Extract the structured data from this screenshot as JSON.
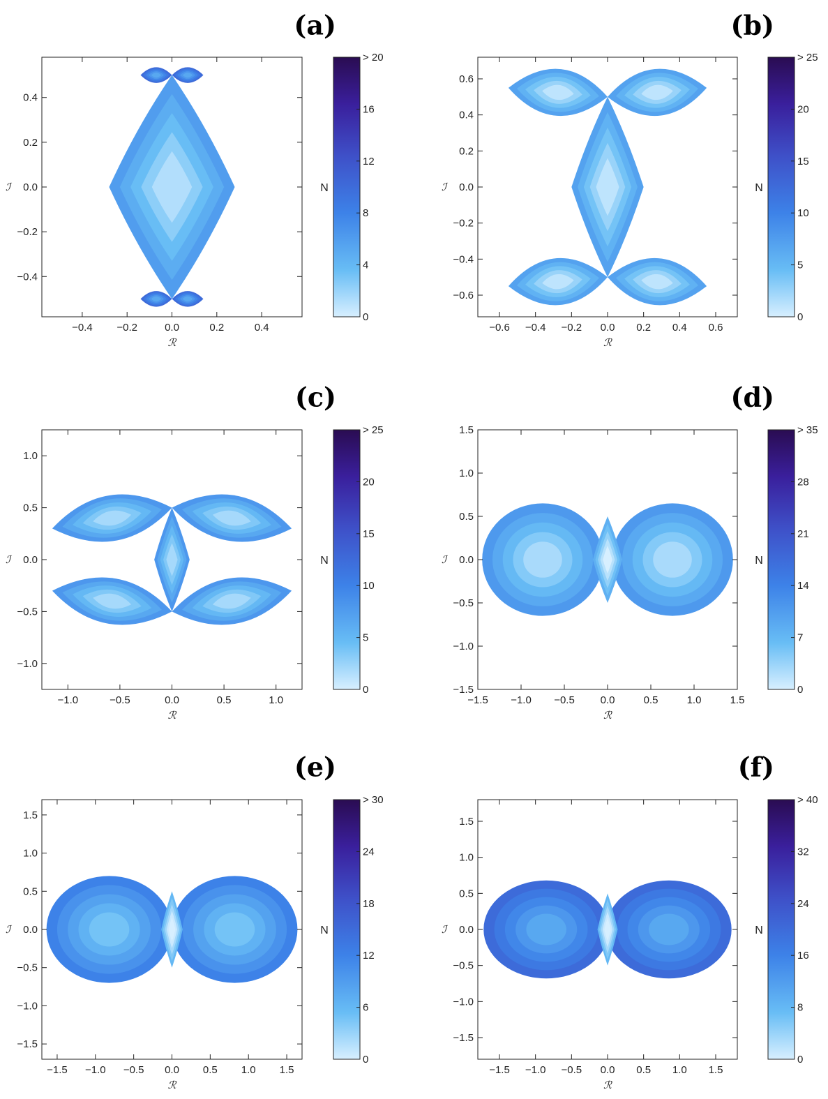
{
  "chart_data": [
    {
      "panel": "(a)",
      "type": "heatmap",
      "xlabel": "ℛ",
      "ylabel": "ℐ",
      "xlim": [
        -0.58,
        0.58
      ],
      "ylim": [
        -0.58,
        0.58
      ],
      "xticks": [
        -0.4,
        -0.2,
        0.0,
        0.2,
        0.4
      ],
      "yticks": [
        -0.4,
        -0.2,
        0.0,
        0.2,
        0.4
      ],
      "xtick_labels": [
        "−0.4",
        "−0.2",
        "0.0",
        "0.2",
        "0.4"
      ],
      "ytick_labels": [
        "−0.4",
        "−0.2",
        "0.0",
        "0.2",
        "0.4"
      ],
      "colorbar": {
        "label": "N",
        "min": 0,
        "max": 20,
        "ticks": [
          0,
          4,
          8,
          12,
          16,
          20
        ],
        "tick_labels": [
          "0",
          "4",
          "8",
          "12",
          "16",
          "> 20"
        ]
      },
      "regions": [
        {
          "kind": "diamond",
          "cx": 0.0,
          "cy": 0.0,
          "rx": 0.28,
          "ry": 0.5,
          "level": 6
        },
        {
          "kind": "lens",
          "x1": -0.14,
          "y1": 0.5,
          "x2": 0.0,
          "y2": 0.5,
          "h": 0.035,
          "level": 10
        },
        {
          "kind": "lens",
          "x1": 0.0,
          "y1": 0.5,
          "x2": 0.14,
          "y2": 0.5,
          "h": 0.035,
          "level": 10
        },
        {
          "kind": "lens",
          "x1": -0.14,
          "y1": -0.5,
          "x2": 0.0,
          "y2": -0.5,
          "h": 0.035,
          "level": 10
        },
        {
          "kind": "lens",
          "x1": 0.0,
          "y1": -0.5,
          "x2": 0.14,
          "y2": -0.5,
          "h": 0.035,
          "level": 10
        }
      ]
    },
    {
      "panel": "(b)",
      "type": "heatmap",
      "xlabel": "ℛ",
      "ylabel": "ℐ",
      "xlim": [
        -0.72,
        0.72
      ],
      "ylim": [
        -0.72,
        0.72
      ],
      "xticks": [
        -0.6,
        -0.4,
        -0.2,
        0.0,
        0.2,
        0.4,
        0.6
      ],
      "yticks": [
        -0.6,
        -0.4,
        -0.2,
        0.0,
        0.2,
        0.4,
        0.6
      ],
      "xtick_labels": [
        "−0.6",
        "−0.4",
        "−0.2",
        "0.0",
        "0.2",
        "0.4",
        "0.6"
      ],
      "ytick_labels": [
        "−0.6",
        "−0.4",
        "−0.2",
        "0.0",
        "0.2",
        "0.4",
        "0.6"
      ],
      "colorbar": {
        "label": "N",
        "min": 0,
        "max": 25,
        "ticks": [
          0,
          5,
          10,
          15,
          20,
          25
        ],
        "tick_labels": [
          "0",
          "5",
          "10",
          "15",
          "20",
          "> 25"
        ]
      },
      "regions": [
        {
          "kind": "diamond",
          "cx": 0.0,
          "cy": 0.0,
          "rx": 0.2,
          "ry": 0.5,
          "level": 7
        },
        {
          "kind": "lens",
          "x1": -0.55,
          "y1": 0.55,
          "x2": 0.0,
          "y2": 0.5,
          "h": 0.13,
          "level": 7
        },
        {
          "kind": "lens",
          "x1": 0.0,
          "y1": 0.5,
          "x2": 0.55,
          "y2": 0.55,
          "h": 0.13,
          "level": 7
        },
        {
          "kind": "lens",
          "x1": -0.55,
          "y1": -0.55,
          "x2": 0.0,
          "y2": -0.5,
          "h": 0.13,
          "level": 7
        },
        {
          "kind": "lens",
          "x1": 0.0,
          "y1": -0.5,
          "x2": 0.55,
          "y2": -0.55,
          "h": 0.13,
          "level": 7
        }
      ]
    },
    {
      "panel": "(c)",
      "type": "heatmap",
      "xlabel": "ℛ",
      "ylabel": "ℐ",
      "xlim": [
        -1.25,
        1.25
      ],
      "ylim": [
        -1.25,
        1.25
      ],
      "xticks": [
        -1.0,
        -0.5,
        0.0,
        0.5,
        1.0
      ],
      "yticks": [
        -1.0,
        -0.5,
        0.0,
        0.5,
        1.0
      ],
      "xtick_labels": [
        "−1.0",
        "−0.5",
        "0.0",
        "0.5",
        "1.0"
      ],
      "ytick_labels": [
        "−1.0",
        "−0.5",
        "0.0",
        "0.5",
        "1.0"
      ],
      "colorbar": {
        "label": "N",
        "min": 0,
        "max": 25,
        "ticks": [
          0,
          5,
          10,
          15,
          20,
          25
        ],
        "tick_labels": [
          "0",
          "5",
          "10",
          "15",
          "20",
          "> 25"
        ]
      },
      "regions": [
        {
          "kind": "diamond",
          "cx": 0.0,
          "cy": 0.0,
          "rx": 0.17,
          "ry": 0.5,
          "level": 8
        },
        {
          "kind": "lens",
          "x1": -1.15,
          "y1": 0.3,
          "x2": 0.0,
          "y2": 0.5,
          "h": 0.22,
          "level": 8
        },
        {
          "kind": "lens",
          "x1": 0.0,
          "y1": 0.5,
          "x2": 1.15,
          "y2": 0.3,
          "h": 0.22,
          "level": 8
        },
        {
          "kind": "lens",
          "x1": -1.15,
          "y1": -0.3,
          "x2": 0.0,
          "y2": -0.5,
          "h": 0.22,
          "level": 8
        },
        {
          "kind": "lens",
          "x1": 0.0,
          "y1": -0.5,
          "x2": 1.15,
          "y2": -0.3,
          "h": 0.22,
          "level": 8
        }
      ]
    },
    {
      "panel": "(d)",
      "type": "heatmap",
      "xlabel": "ℛ",
      "ylabel": "ℐ",
      "xlim": [
        -1.5,
        1.5
      ],
      "ylim": [
        -1.5,
        1.5
      ],
      "xticks": [
        -1.5,
        -1.0,
        -0.5,
        0.0,
        0.5,
        1.0,
        1.5
      ],
      "yticks": [
        -1.5,
        -1.0,
        -0.5,
        0.0,
        0.5,
        1.0,
        1.5
      ],
      "xtick_labels": [
        "−1.5",
        "−1.0",
        "−0.5",
        "0.0",
        "0.5",
        "1.0",
        "1.5"
      ],
      "ytick_labels": [
        "−1.5",
        "−1.0",
        "−0.5",
        "0.0",
        "0.5",
        "1.0",
        "1.5"
      ],
      "colorbar": {
        "label": "N",
        "min": 0,
        "max": 35,
        "ticks": [
          0,
          7,
          14,
          21,
          28,
          35
        ],
        "tick_labels": [
          "0",
          "7",
          "14",
          "21",
          "28",
          "> 35"
        ]
      },
      "regions": [
        {
          "kind": "ellipse",
          "cx": -0.75,
          "cy": 0.0,
          "rx": 0.7,
          "ry": 0.65,
          "level": 11
        },
        {
          "kind": "ellipse",
          "cx": 0.75,
          "cy": 0.0,
          "rx": 0.7,
          "ry": 0.65,
          "level": 11
        },
        {
          "kind": "diamond",
          "cx": 0.0,
          "cy": 0.0,
          "rx": 0.17,
          "ry": 0.5,
          "level": 8
        }
      ]
    },
    {
      "panel": "(e)",
      "type": "heatmap",
      "xlabel": "ℛ",
      "ylabel": "ℐ",
      "xlim": [
        -1.7,
        1.7
      ],
      "ylim": [
        -1.7,
        1.7
      ],
      "xticks": [
        -1.5,
        -1.0,
        -0.5,
        0.0,
        0.5,
        1.0,
        1.5
      ],
      "yticks": [
        -1.5,
        -1.0,
        -0.5,
        0.0,
        0.5,
        1.0,
        1.5
      ],
      "xtick_labels": [
        "−1.5",
        "−1.0",
        "−0.5",
        "0.0",
        "0.5",
        "1.0",
        "1.5"
      ],
      "ytick_labels": [
        "−1.5",
        "−1.0",
        "−0.5",
        "0.0",
        "0.5",
        "1.0",
        "1.5"
      ],
      "colorbar": {
        "label": "N",
        "min": 0,
        "max": 30,
        "ticks": [
          0,
          6,
          12,
          18,
          24,
          30
        ],
        "tick_labels": [
          "0",
          "6",
          "12",
          "18",
          "24",
          "> 30"
        ]
      },
      "regions": [
        {
          "kind": "ellipse",
          "cx": -0.82,
          "cy": 0.0,
          "rx": 0.82,
          "ry": 0.7,
          "level": 12
        },
        {
          "kind": "ellipse",
          "cx": 0.82,
          "cy": 0.0,
          "rx": 0.82,
          "ry": 0.7,
          "level": 12
        },
        {
          "kind": "diamond",
          "cx": 0.0,
          "cy": 0.0,
          "rx": 0.14,
          "ry": 0.5,
          "level": 6
        }
      ]
    },
    {
      "panel": "(f)",
      "type": "heatmap",
      "xlabel": "ℛ",
      "ylabel": "ℐ",
      "xlim": [
        -1.8,
        1.8
      ],
      "ylim": [
        -1.8,
        1.8
      ],
      "xticks": [
        -1.5,
        -1.0,
        -0.5,
        0.0,
        0.5,
        1.0,
        1.5
      ],
      "yticks": [
        -1.5,
        -1.0,
        -0.5,
        0.0,
        0.5,
        1.0,
        1.5
      ],
      "xtick_labels": [
        "−1.5",
        "−1.0",
        "−0.5",
        "0.0",
        "0.5",
        "1.0",
        "1.5"
      ],
      "ytick_labels": [
        "−1.5",
        "−1.0",
        "−0.5",
        "0.0",
        "0.5",
        "1.0",
        "1.5"
      ],
      "colorbar": {
        "label": "N",
        "min": 0,
        "max": 40,
        "ticks": [
          0,
          8,
          16,
          24,
          32,
          40
        ],
        "tick_labels": [
          "0",
          "8",
          "16",
          "24",
          "32",
          "> 40"
        ]
      },
      "regions": [
        {
          "kind": "ellipse",
          "cx": -0.85,
          "cy": 0.0,
          "rx": 0.87,
          "ry": 0.68,
          "level": 20
        },
        {
          "kind": "ellipse",
          "cx": 0.85,
          "cy": 0.0,
          "rx": 0.87,
          "ry": 0.68,
          "level": 20
        },
        {
          "kind": "diamond",
          "cx": 0.0,
          "cy": 0.0,
          "rx": 0.14,
          "ry": 0.5,
          "level": 8
        }
      ]
    }
  ]
}
